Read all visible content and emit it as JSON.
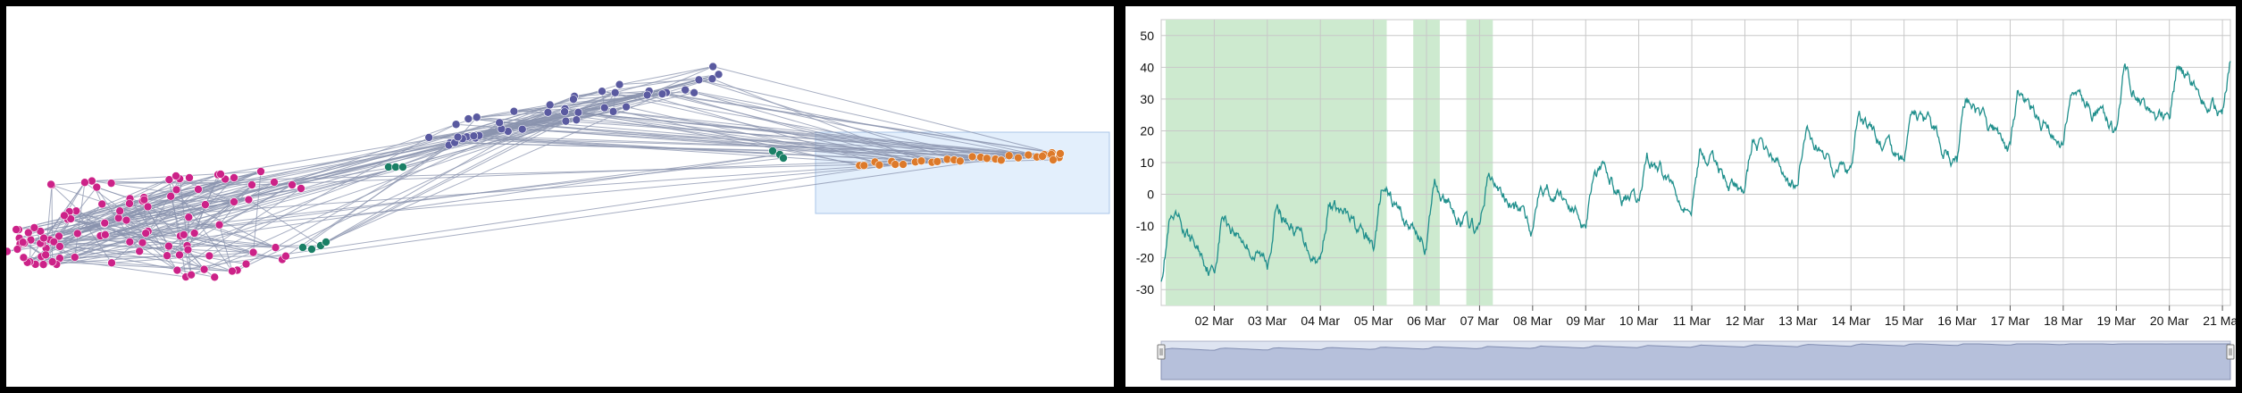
{
  "colors": {
    "background": "#ffffff",
    "frame": "#000000",
    "edge": "#8a93ad",
    "cluster_magenta": "#cc2288",
    "cluster_purple": "#5a5aa0",
    "cluster_green": "#1a7f66",
    "cluster_orange": "#dd7a2a",
    "selection_fill": "#e3effc",
    "selection_stroke": "#a8c6e8",
    "series_line": "#1f8f8c",
    "highlight_band": "#cdeacf",
    "grid": "#c8c8c8",
    "navigator_fill": "#c5cbe0",
    "navigator_stroke": "#8890b0"
  },
  "chart_data": [
    {
      "type": "scatter",
      "subtype": "network-graph",
      "title": "",
      "clusters": [
        "magenta",
        "purple",
        "green",
        "orange"
      ],
      "selection_box": true,
      "axes": "none"
    },
    {
      "type": "line",
      "title": "",
      "xlabel": "",
      "ylabel": "",
      "x_range": [
        "2025-03-01",
        "2025-03-21"
      ],
      "ylim": [
        -35,
        55
      ],
      "yticks": [
        -30,
        -20,
        -10,
        0,
        10,
        20,
        30,
        40,
        50
      ],
      "xtick_labels": [
        "02 Mar",
        "03 Mar",
        "04 Mar",
        "05 Mar",
        "06 Mar",
        "07 Mar",
        "08 Mar",
        "09 Mar",
        "10 Mar",
        "11 Mar",
        "12 Mar",
        "13 Mar",
        "14 Mar",
        "15 Mar",
        "16 Mar",
        "17 Mar",
        "18 Mar",
        "19 Mar",
        "20 Mar",
        "21 Mar"
      ],
      "grid": true,
      "highlight_ranges": [
        [
          "2025-03-01T02:00",
          "2025-03-05T06:00"
        ],
        [
          "2025-03-05T18:00",
          "2025-03-06T06:00"
        ],
        [
          "2025-03-06T18:00",
          "2025-03-07T06:00"
        ]
      ],
      "trend": {
        "x": [
          "2025-03-01",
          "2025-03-03",
          "2025-03-05",
          "2025-03-07",
          "2025-03-09",
          "2025-03-11",
          "2025-03-13",
          "2025-03-15",
          "2025-03-17",
          "2025-03-19",
          "2025-03-21"
        ],
        "y": [
          -18,
          -14,
          -10,
          -5,
          0,
          5,
          10,
          16,
          21,
          26,
          32
        ]
      },
      "daily_amplitude": 11,
      "navigator": true
    }
  ]
}
